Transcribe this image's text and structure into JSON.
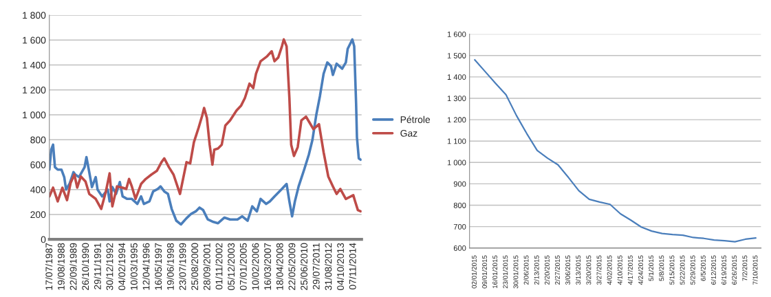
{
  "chart_data": [
    {
      "type": "line",
      "legend": "right",
      "grid": "y",
      "marker": "none",
      "line_style": "solid",
      "xlim": [
        "1987-07-01",
        "2015-08-01"
      ],
      "xticks": [
        {
          "value": "1987-07-17",
          "label": "17/07/1987"
        },
        {
          "value": "1988-08-19",
          "label": "19/08/1988"
        },
        {
          "value": "1989-09-22",
          "label": "22/09/1989"
        },
        {
          "value": "1990-10-26",
          "label": "26/10/1990"
        },
        {
          "value": "1991-11-29",
          "label": "29/11/1991"
        },
        {
          "value": "1992-12-30",
          "label": "30/12/1992"
        },
        {
          "value": "1994-02-04",
          "label": "04/02/1994"
        },
        {
          "value": "1995-03-10",
          "label": "10/03/1995"
        },
        {
          "value": "1996-04-12",
          "label": "12/04/1996"
        },
        {
          "value": "1997-05-16",
          "label": "16/05/1997"
        },
        {
          "value": "1998-06-19",
          "label": "19/06/1998"
        },
        {
          "value": "1999-07-23",
          "label": "23/07/1999"
        },
        {
          "value": "2000-08-25",
          "label": "25/08/2000"
        },
        {
          "value": "2001-09-28",
          "label": "28/09/2001"
        },
        {
          "value": "2002-11-01",
          "label": "01/11/2002"
        },
        {
          "value": "2003-12-05",
          "label": "05/12/2003"
        },
        {
          "value": "2005-01-07",
          "label": "07/01/2005"
        },
        {
          "value": "2006-02-10",
          "label": "10/02/2006"
        },
        {
          "value": "2007-03-16",
          "label": "16/03/2007"
        },
        {
          "value": "2008-04-18",
          "label": "18/04/2008"
        },
        {
          "value": "2009-05-22",
          "label": "22/05/2009"
        },
        {
          "value": "2010-06-25",
          "label": "25/06/2010"
        },
        {
          "value": "2011-07-29",
          "label": "29/07/2011"
        },
        {
          "value": "2012-08-31",
          "label": "31/08/2012"
        },
        {
          "value": "2013-10-04",
          "label": "04/10/2013"
        },
        {
          "value": "2014-11-07",
          "label": "07/11/2014"
        }
      ],
      "ylim": [
        0,
        1800
      ],
      "yticks": [
        0,
        200,
        400,
        600,
        800,
        {
          "value": 1000,
          "label": "1 000"
        },
        {
          "value": 1200,
          "label": "1 200"
        },
        {
          "value": 1400,
          "label": "1 400"
        },
        {
          "value": 1600,
          "label": "1 600"
        },
        {
          "value": 1800,
          "label": "1 800"
        }
      ],
      "series": [
        {
          "name": "Pétrole",
          "color": "#4a7ebb",
          "x": [
            "1987-07",
            "1987-09",
            "1987-11",
            "1988-01",
            "1988-04",
            "1988-08",
            "1988-11",
            "1989-01",
            "1989-05",
            "1989-09",
            "1989-11",
            "1990-03",
            "1990-09",
            "1990-11",
            "1991-02",
            "1991-05",
            "1991-09",
            "1991-11",
            "1992-04",
            "1992-10",
            "1992-12",
            "1993-03",
            "1993-07",
            "1993-11",
            "1994-02",
            "1994-07",
            "1994-12",
            "1995-06",
            "1995-10",
            "1996-01",
            "1996-07",
            "1996-11",
            "1997-04",
            "1997-07",
            "1997-11",
            "1998-03",
            "1998-07",
            "1998-12",
            "1999-05",
            "1999-11",
            "2000-04",
            "2000-09",
            "2001-01",
            "2001-05",
            "2001-10",
            "2002-04",
            "2002-09",
            "2003-04",
            "2003-10",
            "2004-06",
            "2004-11",
            "2005-05",
            "2005-10",
            "2006-03",
            "2006-07",
            "2007-01",
            "2007-05",
            "2007-10",
            "2008-06",
            "2008-11",
            "2009-02",
            "2009-05",
            "2009-08",
            "2009-12",
            "2010-06",
            "2010-11",
            "2011-03",
            "2011-07",
            "2011-11",
            "2012-03",
            "2012-07",
            "2012-11",
            "2013-01",
            "2013-05",
            "2013-11",
            "2014-03",
            "2014-05",
            "2014-10",
            "2014-12",
            "2015-02",
            "2015-03",
            "2015-05",
            "2015-07"
          ],
          "values": [
            560,
            720,
            760,
            580,
            560,
            560,
            500,
            400,
            450,
            540,
            520,
            500,
            580,
            660,
            540,
            420,
            500,
            400,
            345,
            400,
            305,
            420,
            365,
            460,
            345,
            325,
            325,
            285,
            345,
            285,
            305,
            385,
            405,
            425,
            385,
            365,
            245,
            150,
            120,
            170,
            205,
            225,
            255,
            235,
            160,
            140,
            130,
            175,
            160,
            160,
            185,
            150,
            265,
            225,
            325,
            285,
            305,
            345,
            405,
            445,
            305,
            185,
            305,
            425,
            560,
            680,
            800,
            995,
            1150,
            1330,
            1420,
            1390,
            1320,
            1410,
            1370,
            1420,
            1530,
            1605,
            1550,
            1095,
            820,
            650,
            640
          ]
        },
        {
          "name": "Gaz",
          "color": "#be4b48",
          "x": [
            "1987-07",
            "1987-11",
            "1988-04",
            "1988-09",
            "1989-02",
            "1989-06",
            "1989-10",
            "1990-01",
            "1990-05",
            "1990-10",
            "1991-02",
            "1991-09",
            "1992-03",
            "1992-08",
            "1992-12",
            "1993-03",
            "1993-08",
            "1994-02",
            "1994-06",
            "1994-09",
            "1994-12",
            "1995-04",
            "1995-10",
            "1996-03",
            "1996-09",
            "1997-03",
            "1997-08",
            "1997-11",
            "1998-04",
            "1998-09",
            "1999-04",
            "1999-11",
            "2000-03",
            "2000-07",
            "2000-12",
            "2001-04",
            "2001-06",
            "2001-09",
            "2001-12",
            "2002-03",
            "2002-05",
            "2002-09",
            "2003-01",
            "2003-05",
            "2003-10",
            "2004-05",
            "2004-10",
            "2005-02",
            "2005-07",
            "2005-11",
            "2006-02",
            "2006-07",
            "2007-02",
            "2007-07",
            "2007-10",
            "2008-02",
            "2008-06",
            "2008-08",
            "2008-11",
            "2009-02",
            "2009-04",
            "2009-07",
            "2009-11",
            "2010-03",
            "2010-08",
            "2010-12",
            "2011-04",
            "2011-10",
            "2012-03",
            "2012-08",
            "2013-01",
            "2013-05",
            "2013-09",
            "2014-03",
            "2014-11",
            "2015-01",
            "2015-04",
            "2015-07"
          ],
          "values": [
            345,
            415,
            305,
            415,
            315,
            455,
            520,
            415,
            505,
            465,
            365,
            325,
            245,
            385,
            530,
            265,
            425,
            415,
            405,
            485,
            425,
            325,
            445,
            485,
            520,
            550,
            620,
            650,
            580,
            520,
            365,
            620,
            610,
            780,
            895,
            995,
            1055,
            975,
            760,
            600,
            720,
            730,
            760,
            915,
            955,
            1035,
            1075,
            1135,
            1250,
            1215,
            1330,
            1430,
            1470,
            1510,
            1430,
            1460,
            1550,
            1605,
            1550,
            1135,
            760,
            670,
            740,
            955,
            985,
            935,
            885,
            925,
            700,
            505,
            425,
            365,
            405,
            325,
            355,
            305,
            235,
            225
          ]
        }
      ]
    },
    {
      "type": "line",
      "grid": "y",
      "marker": "none",
      "line_style": "solid",
      "categories": [
        "02/01/2015",
        "09/01/2015",
        "16/01/2015",
        "23/01/2015",
        "30/01/2015",
        "2/06/2015",
        "2/13/2015",
        "2/20/2015",
        "2/27/2015",
        "3/06/2015",
        "3/13/2015",
        "3/20/2015",
        "3/27/2015",
        "4/02/2015",
        "4/10/2015",
        "4/17/2015",
        "4/24/2015",
        "5/1/2015",
        "5/8/2015",
        "5/15/2015",
        "5/22/2015",
        "5/29/2015",
        "6/5/2015",
        "6/12/2015",
        "6/19/2015",
        "6/26/2015",
        "7/2/2015",
        "7/10/2015"
      ],
      "ylim": [
        600,
        1600
      ],
      "yticks": [
        600,
        700,
        800,
        900,
        {
          "value": 1000,
          "label": "1 000"
        },
        {
          "value": 1100,
          "label": "1 100"
        },
        {
          "value": 1200,
          "label": "1 200"
        },
        {
          "value": 1300,
          "label": "1 300"
        },
        {
          "value": 1400,
          "label": "1 400"
        },
        {
          "value": 1500,
          "label": "1 500"
        },
        {
          "value": 1600,
          "label": "1 600"
        }
      ],
      "series": [
        {
          "color": "#4a7ebb",
          "values": [
            1480,
            1425,
            1370,
            1317,
            1220,
            1135,
            1056,
            1020,
            989,
            930,
            868,
            828,
            815,
            804,
            760,
            730,
            698,
            679,
            668,
            663,
            660,
            649,
            645,
            637,
            634,
            629,
            641,
            647
          ]
        }
      ]
    }
  ]
}
